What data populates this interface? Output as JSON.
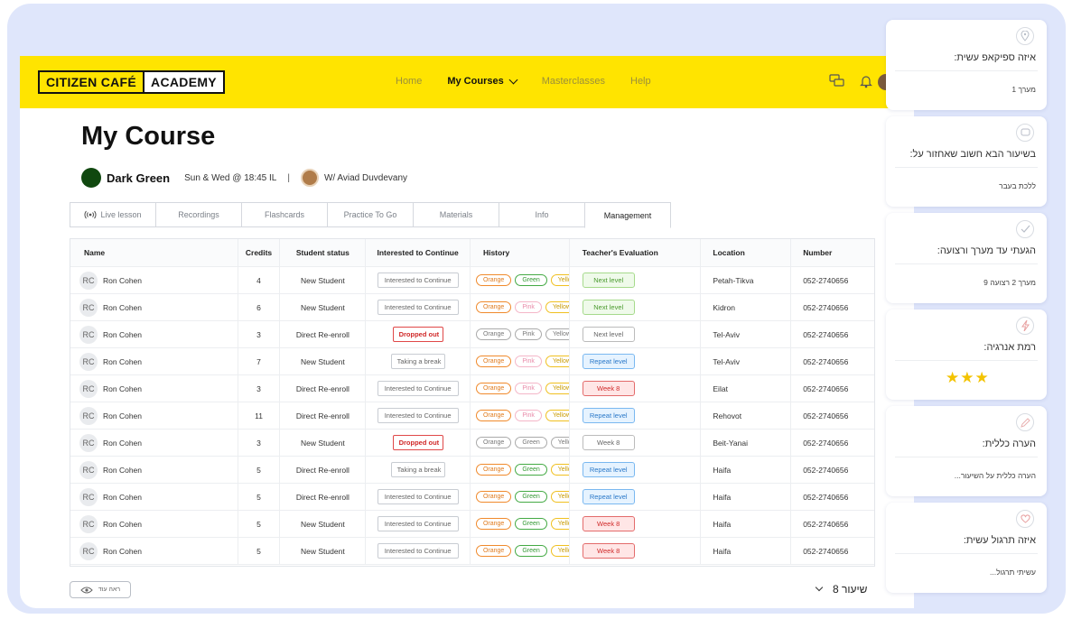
{
  "header": {
    "logo_part1": "CITIZEN CAFÉ",
    "logo_part2": "ACADEMY",
    "nav": [
      "Home",
      "My Courses",
      "Masterclasses",
      "Help"
    ],
    "active_nav": "My Courses"
  },
  "page": {
    "title": "My Course",
    "course_name": "Dark Green",
    "course_color": "#10480f",
    "schedule": "Sun & Wed @ 18:45 IL",
    "separator": "|",
    "teacher": "W/ Aviad Duvdevany"
  },
  "tabs": [
    {
      "label": "Live lesson",
      "icon": "broadcast-icon"
    },
    {
      "label": "Recordings"
    },
    {
      "label": "Flashcards"
    },
    {
      "label": "Practice To Go"
    },
    {
      "label": "Materials"
    },
    {
      "label": "Info"
    },
    {
      "label": "Management",
      "active": true
    }
  ],
  "table": {
    "headers": {
      "name": "Name",
      "credits": "Credits",
      "status": "Student status",
      "interest": "Interested to Continue",
      "history": "History",
      "evaluation": "Teacher's Evaluation",
      "location": "Location",
      "number": "Number"
    },
    "rows": [
      {
        "initials": "RC",
        "name": "Ron Cohen",
        "credits": "4",
        "status": "New Student",
        "interest": "Interested to Continue",
        "interest_style": "normal",
        "history": [
          {
            "label": "Orange",
            "color": "orange"
          },
          {
            "label": "Green",
            "color": "green"
          },
          {
            "label": "Yellow",
            "color": "yellow"
          }
        ],
        "evaluation": "Next level",
        "eval_style": "next",
        "location": "Petah-Tikva",
        "number": "052-2740656"
      },
      {
        "initials": "RC",
        "name": "Ron Cohen",
        "credits": "6",
        "status": "New Student",
        "interest": "Interested to Continue",
        "interest_style": "normal",
        "history": [
          {
            "label": "Orange",
            "color": "orange"
          },
          {
            "label": "Pink",
            "color": "pink"
          },
          {
            "label": "Yellow",
            "color": "yellow"
          }
        ],
        "evaluation": "Next level",
        "eval_style": "next",
        "location": "Kidron",
        "number": "052-2740656"
      },
      {
        "initials": "RC",
        "name": "Ron Cohen",
        "credits": "3",
        "status": "Direct Re-enroll",
        "interest": "Dropped out",
        "interest_style": "red",
        "history": [
          {
            "label": "Orange",
            "color": "grey"
          },
          {
            "label": "Pink",
            "color": "grey"
          },
          {
            "label": "Yellow",
            "color": "grey"
          }
        ],
        "evaluation": "Next level",
        "eval_style": "plainw",
        "location": "Tel-Aviv",
        "number": "052-2740656"
      },
      {
        "initials": "RC",
        "name": "Ron Cohen",
        "credits": "7",
        "status": "New Student",
        "interest": "Taking a break",
        "interest_style": "plain",
        "history": [
          {
            "label": "Orange",
            "color": "orange"
          },
          {
            "label": "Pink",
            "color": "pink"
          },
          {
            "label": "Yellow",
            "color": "yellow"
          }
        ],
        "evaluation": "Repeat level",
        "eval_style": "repeat",
        "location": "Tel-Aviv",
        "number": "052-2740656"
      },
      {
        "initials": "RC",
        "name": "Ron Cohen",
        "credits": "3",
        "status": "Direct Re-enroll",
        "interest": "Interested to Continue",
        "interest_style": "normal",
        "history": [
          {
            "label": "Orange",
            "color": "orange"
          },
          {
            "label": "Pink",
            "color": "pink"
          },
          {
            "label": "Yellow",
            "color": "yellow"
          }
        ],
        "evaluation": "Week 8",
        "eval_style": "week",
        "location": "Eilat",
        "number": "052-2740656"
      },
      {
        "initials": "RC",
        "name": "Ron Cohen",
        "credits": "11",
        "status": "Direct Re-enroll",
        "interest": "Interested to Continue",
        "interest_style": "normal",
        "history": [
          {
            "label": "Orange",
            "color": "orange"
          },
          {
            "label": "Pink",
            "color": "pink"
          },
          {
            "label": "Yellow",
            "color": "yellow"
          }
        ],
        "evaluation": "Repeat level",
        "eval_style": "repeat",
        "location": "Rehovot",
        "number": "052-2740656"
      },
      {
        "initials": "RC",
        "name": "Ron Cohen",
        "credits": "3",
        "status": "New Student",
        "interest": "Dropped out",
        "interest_style": "red",
        "history": [
          {
            "label": "Orange",
            "color": "grey"
          },
          {
            "label": "Green",
            "color": "grey"
          },
          {
            "label": "Yellow",
            "color": "grey"
          }
        ],
        "evaluation": "Week 8",
        "eval_style": "plainw",
        "location": "Beit-Yanai",
        "number": "052-2740656"
      },
      {
        "initials": "RC",
        "name": "Ron Cohen",
        "credits": "5",
        "status": "Direct Re-enroll",
        "interest": "Taking a break",
        "interest_style": "plain",
        "history": [
          {
            "label": "Orange",
            "color": "orange"
          },
          {
            "label": "Green",
            "color": "green"
          },
          {
            "label": "Yellow",
            "color": "yellow"
          }
        ],
        "evaluation": "Repeat level",
        "eval_style": "repeat",
        "location": "Haifa",
        "number": "052-2740656"
      },
      {
        "initials": "RC",
        "name": "Ron Cohen",
        "credits": "5",
        "status": "Direct Re-enroll",
        "interest": "Interested to Continue",
        "interest_style": "normal",
        "history": [
          {
            "label": "Orange",
            "color": "orange"
          },
          {
            "label": "Green",
            "color": "green"
          },
          {
            "label": "Yellow",
            "color": "yellow"
          }
        ],
        "evaluation": "Repeat level",
        "eval_style": "repeat",
        "location": "Haifa",
        "number": "052-2740656"
      },
      {
        "initials": "RC",
        "name": "Ron Cohen",
        "credits": "5",
        "status": "New Student",
        "interest": "Interested to Continue",
        "interest_style": "normal",
        "history": [
          {
            "label": "Orange",
            "color": "orange"
          },
          {
            "label": "Green",
            "color": "green"
          },
          {
            "label": "Yellow",
            "color": "yellow"
          }
        ],
        "evaluation": "Week 8",
        "eval_style": "week",
        "location": "Haifa",
        "number": "052-2740656"
      },
      {
        "initials": "RC",
        "name": "Ron Cohen",
        "credits": "5",
        "status": "New Student",
        "interest": "Interested to Continue",
        "interest_style": "normal",
        "history": [
          {
            "label": "Orange",
            "color": "orange"
          },
          {
            "label": "Green",
            "color": "green"
          },
          {
            "label": "Yellow",
            "color": "yellow"
          }
        ],
        "evaluation": "Week 8",
        "eval_style": "week",
        "location": "Haifa",
        "number": "052-2740656"
      }
    ]
  },
  "footer": {
    "see_more": "ראה עוד",
    "lesson_select": "שיעור 8"
  },
  "side_panel": [
    {
      "icon": "pin-icon",
      "question": "איזה ספיקאפ עשית:",
      "answer": "מערך 1"
    },
    {
      "icon": "chat-icon",
      "question": "בשיעור הבא חשוב שאחזור על:",
      "answer": "ללכת בעבר"
    },
    {
      "icon": "check-icon",
      "question": "הגעתי עד מערך ורצועה:",
      "answer": "מערך 2 רצועה 9"
    },
    {
      "icon": "lightning-icon",
      "question": "רמת אנרגיה:",
      "stars": 3
    },
    {
      "icon": "pencil-icon",
      "question": "הערה כללית:",
      "answer": "הערה כללית על השיעור..."
    },
    {
      "icon": "heart-icon",
      "question": "איזה תרגול עשית:",
      "answer": "עשיתי תרגול..."
    }
  ]
}
